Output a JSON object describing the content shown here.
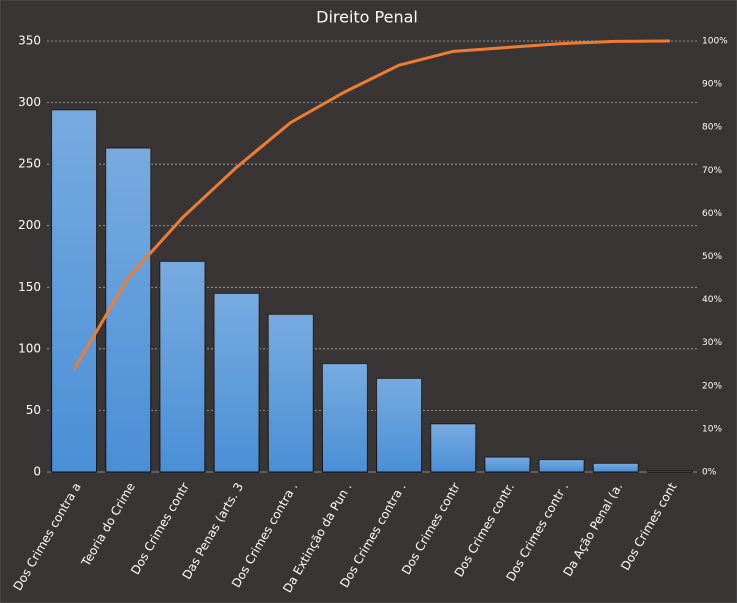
{
  "chart_data": {
    "type": "pareto",
    "title": "Direito Penal",
    "categories": [
      "Dos Crimes contra a",
      "Teoria do Crime",
      "Dos Crimes contr",
      "Das Penas (arts. 3",
      "Dos Crimes contra .",
      "Da Extinção da Pun .",
      "Dos Crimes contra .",
      "Dos Crimes contr",
      "Dos Crimes contr.",
      "Dos Crimes contr .",
      "Da Ação Penal (a.",
      "Dos Crimes cont"
    ],
    "series": [
      {
        "type": "bar",
        "color": "#4a8fd6",
        "values": [
          294,
          263,
          171,
          145,
          128,
          88,
          76,
          39,
          12,
          10,
          7,
          1
        ]
      },
      {
        "type": "line",
        "axis": "y2",
        "color": "#ed7d31",
        "values": [
          23.8,
          45.1,
          59,
          70.7,
          81.1,
          88.2,
          94.4,
          97.6,
          98.5,
          99.4,
          99.9,
          100
        ]
      }
    ],
    "ylim": [
      0,
      350
    ],
    "yticks": [
      0,
      50,
      100,
      150,
      200,
      250,
      300,
      350
    ],
    "y2lim": [
      0,
      100
    ],
    "y2ticks": [
      {
        "value": 0,
        "label": "0%"
      },
      {
        "value": 10,
        "label": "10%"
      },
      {
        "value": 20,
        "label": "20%"
      },
      {
        "value": 30,
        "label": "30%"
      },
      {
        "value": 40,
        "label": "40%"
      },
      {
        "value": 50,
        "label": "50%"
      },
      {
        "value": 60,
        "label": "60%"
      },
      {
        "value": 70,
        "label": "70%"
      },
      {
        "value": 80,
        "label": "80%"
      },
      {
        "value": 90,
        "label": "90%"
      },
      {
        "value": 100,
        "label": "100%"
      }
    ],
    "grid": true
  }
}
